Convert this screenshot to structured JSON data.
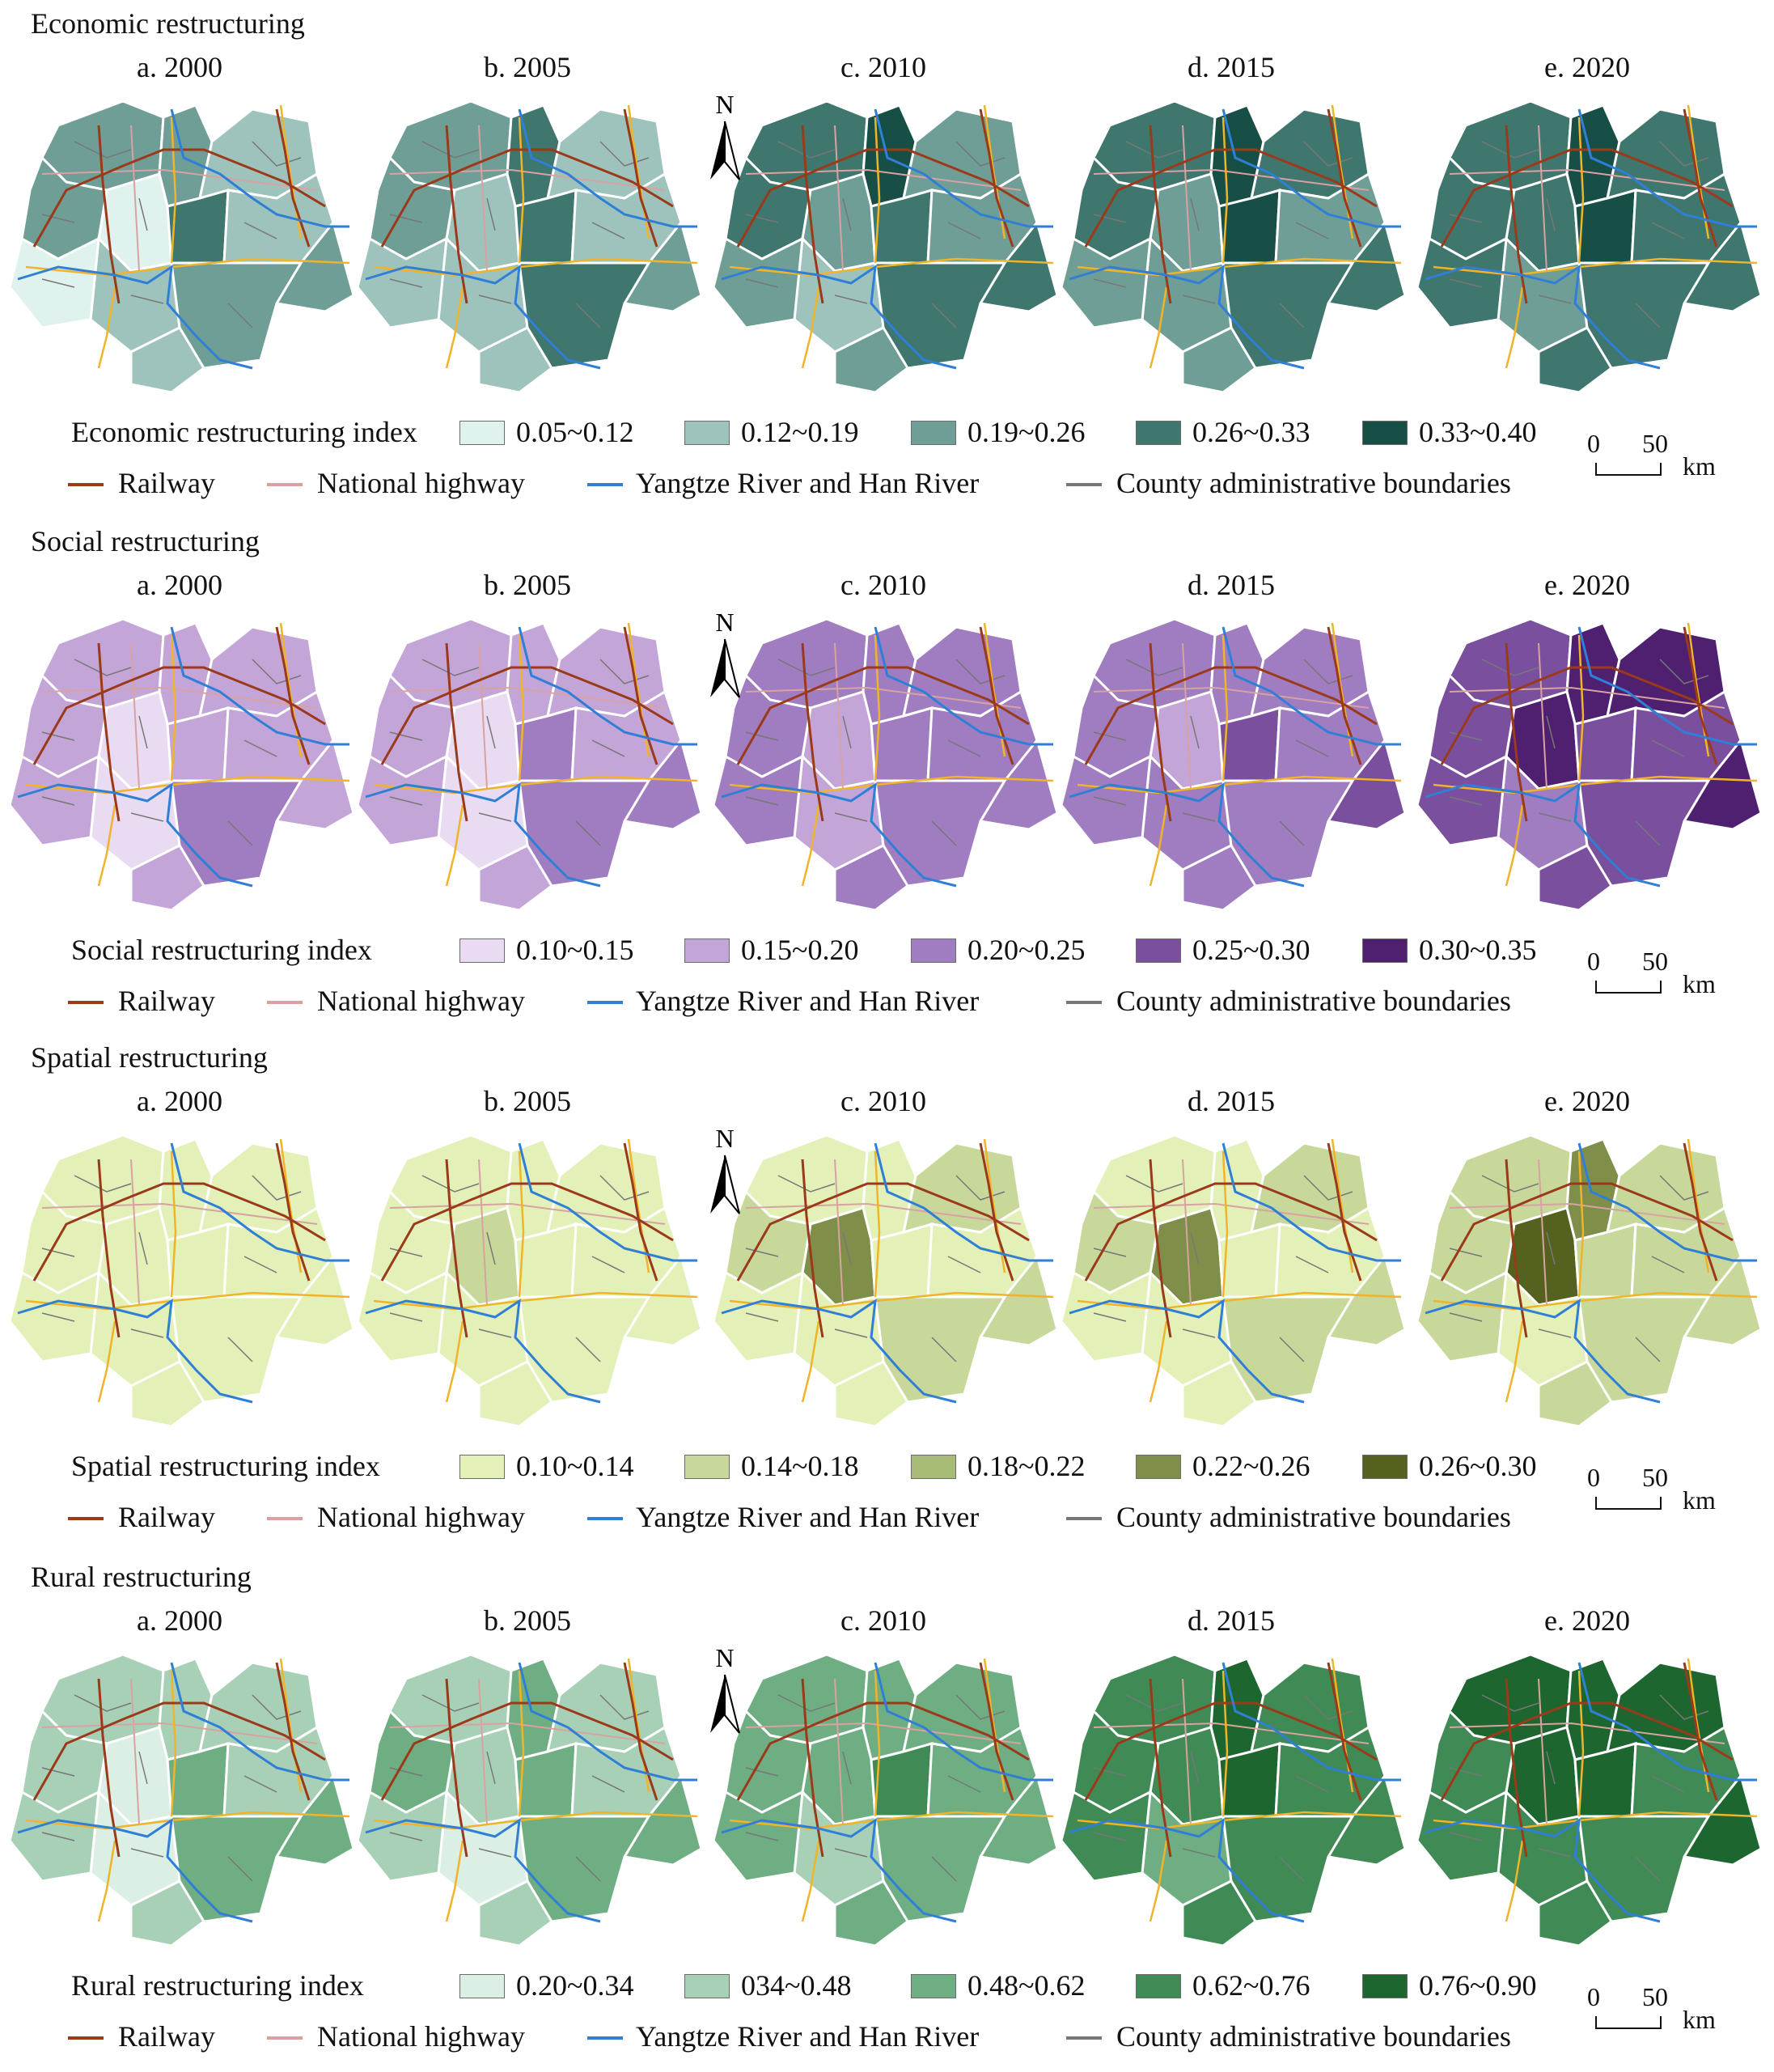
{
  "sections": [
    {
      "title": "Economic restructuring",
      "legend_title": "Economic restructuring index",
      "panels": [
        "a. 2000",
        "b. 2005",
        "c. 2010",
        "d. 2015",
        "e. 2020"
      ],
      "classes": [
        "0.05~0.12",
        "0.12~0.19",
        "0.19~0.26",
        "0.26~0.33",
        "0.33~0.40"
      ],
      "colors": [
        "#dff2ee",
        "#9ec3bc",
        "#6f9e96",
        "#3f766e",
        "#174f47"
      ],
      "panel_levels": [
        [
          2,
          2,
          1,
          0,
          3,
          1,
          2,
          2,
          1,
          0,
          2,
          1
        ],
        [
          2,
          3,
          1,
          1,
          3,
          1,
          2,
          2,
          1,
          1,
          3,
          1
        ],
        [
          3,
          4,
          2,
          2,
          3,
          2,
          3,
          3,
          1,
          2,
          3,
          2
        ],
        [
          3,
          4,
          3,
          2,
          4,
          2,
          3,
          3,
          2,
          2,
          3,
          2
        ],
        [
          3,
          4,
          3,
          3,
          4,
          3,
          3,
          3,
          2,
          3,
          3,
          3
        ]
      ]
    },
    {
      "title": "Social restructuring",
      "legend_title": "Social restructuring index",
      "panels": [
        "a. 2000",
        "b. 2005",
        "c. 2010",
        "d. 2015",
        "e. 2020"
      ],
      "classes": [
        "0.10~0.15",
        "0.15~0.20",
        "0.20~0.25",
        "0.25~0.30",
        "0.30~0.35"
      ],
      "colors": [
        "#e8dbf2",
        "#c4a5d8",
        "#a07cc0",
        "#7a4f9e",
        "#4f2070"
      ],
      "panel_levels": [
        [
          1,
          1,
          1,
          0,
          1,
          1,
          1,
          1,
          0,
          1,
          2,
          1
        ],
        [
          1,
          1,
          1,
          0,
          2,
          1,
          1,
          2,
          0,
          1,
          2,
          1
        ],
        [
          2,
          2,
          2,
          1,
          2,
          2,
          2,
          2,
          1,
          2,
          2,
          2
        ],
        [
          2,
          2,
          2,
          1,
          3,
          2,
          2,
          3,
          2,
          2,
          2,
          2
        ],
        [
          3,
          4,
          4,
          4,
          3,
          3,
          3,
          4,
          2,
          3,
          3,
          3
        ]
      ]
    },
    {
      "title": "Spatial restructuring",
      "legend_title": "Spatial restructuring index",
      "panels": [
        "a. 2000",
        "b. 2005",
        "c. 2010",
        "d. 2015",
        "e. 2020"
      ],
      "classes": [
        "0.10~0.14",
        "0.14~0.18",
        "0.18~0.22",
        "0.22~0.26",
        "0.26~0.30"
      ],
      "colors": [
        "#e3f0b8",
        "#c8d89a",
        "#a9bc77",
        "#7f8f4a",
        "#55621f"
      ],
      "panel_levels": [
        [
          0,
          0,
          0,
          0,
          0,
          0,
          0,
          0,
          0,
          0,
          0,
          0
        ],
        [
          0,
          0,
          0,
          1,
          0,
          0,
          0,
          0,
          0,
          0,
          0,
          0
        ],
        [
          0,
          0,
          1,
          3,
          0,
          0,
          1,
          1,
          0,
          0,
          1,
          0
        ],
        [
          0,
          0,
          1,
          3,
          0,
          0,
          1,
          1,
          0,
          0,
          1,
          0
        ],
        [
          1,
          3,
          1,
          4,
          1,
          1,
          1,
          1,
          0,
          1,
          1,
          1
        ]
      ]
    },
    {
      "title": "Rural restructuring",
      "legend_title": "Rural restructuring index",
      "panels": [
        "a. 2000",
        "b. 2005",
        "c. 2010",
        "d. 2015",
        "e. 2020"
      ],
      "classes": [
        "0.20~0.34",
        "034~0.48",
        "0.48~0.62",
        "0.62~0.76",
        "0.76~0.90"
      ],
      "colors": [
        "#dbefe4",
        "#a8d0b6",
        "#6fae83",
        "#3f8a55",
        "#1e6630"
      ],
      "panel_levels": [
        [
          1,
          1,
          1,
          0,
          2,
          1,
          1,
          2,
          0,
          1,
          2,
          1
        ],
        [
          1,
          2,
          1,
          1,
          2,
          1,
          2,
          2,
          0,
          1,
          2,
          1
        ],
        [
          2,
          2,
          2,
          2,
          3,
          2,
          2,
          2,
          1,
          2,
          2,
          2
        ],
        [
          3,
          4,
          3,
          3,
          4,
          3,
          3,
          3,
          2,
          3,
          3,
          3
        ],
        [
          4,
          4,
          4,
          4,
          4,
          3,
          3,
          4,
          3,
          3,
          3,
          3
        ]
      ]
    }
  ],
  "line_legend": {
    "railway": "Railway",
    "highway": "National highway",
    "river": "Yangtze River and Han River",
    "boundary": "County administrative boundaries"
  },
  "scale": {
    "zero": "0",
    "fifty": "50",
    "unit": "km"
  },
  "north_label": "N",
  "line_colors": {
    "railway": "#9a3a1a",
    "highway": "#d9a2a2",
    "river": "#2f7fd6",
    "boundary": "#777777",
    "road_yellow": "#f0b428"
  }
}
